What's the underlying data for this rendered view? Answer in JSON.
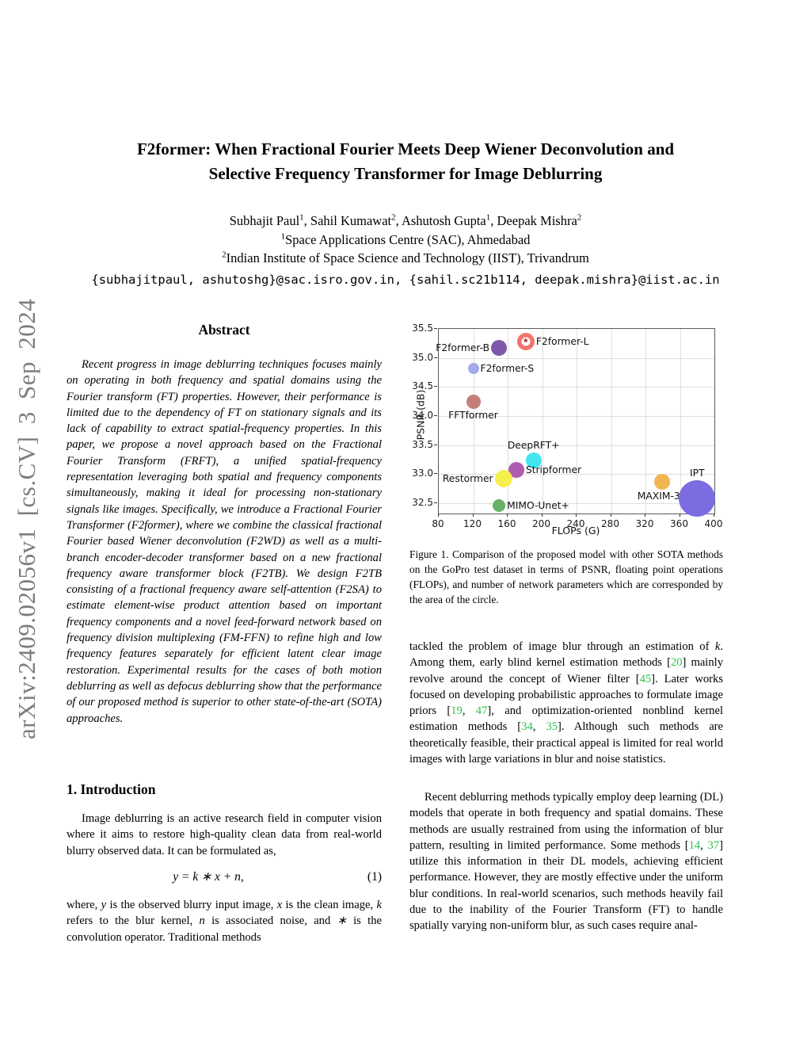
{
  "arxiv_banner": "arXiv:2409.02056v1 [cs.CV] 3 Sep 2024",
  "header": {
    "title_line1": "F2former: When Fractional Fourier Meets Deep Wiener Deconvolution and",
    "title_line2": "Selective Frequency Transformer for Image Deblurring",
    "authors_segments": [
      {
        "t": "Subhajit Paul"
      },
      {
        "sup": "1"
      },
      {
        "t": ", Sahil Kumawat"
      },
      {
        "sup": "2"
      },
      {
        "t": ", Ashutosh Gupta"
      },
      {
        "sup": "1"
      },
      {
        "t": ", Deepak Mishra"
      },
      {
        "sup": "2"
      }
    ],
    "affil1_segments": [
      {
        "sup": "1"
      },
      {
        "t": "Space Applications Centre (SAC), Ahmedabad"
      }
    ],
    "affil2_segments": [
      {
        "sup": "2"
      },
      {
        "t": "Indian Institute of Space Science and Technology (IIST), Trivandrum"
      }
    ],
    "emails": "{subhajitpaul, ashutoshg}@sac.isro.gov.in, {sahil.sc21b114, deepak.mishra}@iist.ac.in"
  },
  "left_column": {
    "abstract_title": "Abstract",
    "abstract_text": "Recent progress in image deblurring techniques focuses mainly on operating in both frequency and spatial domains using the Fourier transform (FT) properties. However, their performance is limited due to the dependency of FT on stationary signals and its lack of capability to extract spatial-frequency properties. In this paper, we propose a novel approach based on the Fractional Fourier Transform (FRFT), a unified spatial-frequency representation leveraging both spatial and frequency components simultaneously, making it ideal for processing non-stationary signals like images. Specifically, we introduce a Fractional Fourier Transformer (F2former), where we combine the classical fractional Fourier based Wiener deconvolution (F2WD) as well as a multi-branch encoder-decoder transformer based on a new fractional frequency aware transformer block (F2TB). We design F2TB consisting of a fractional frequency aware self-attention (F2SA) to estimate element-wise product attention based on important frequency components and a novel feed-forward network based on frequency division multiplexing (FM-FFN) to refine high and low frequency features separately for efficient latent clear image restoration. Experimental results for the cases of both motion deblurring as well as defocus deblurring show that the performance of our proposed method is superior to other state-of-the-art (SOTA) approaches.",
    "section1_title": "1. Introduction",
    "intro_p1": "Image deblurring is an active research field in computer vision where it aims to restore high-quality clean data from real-world blurry observed data. It can be formulated as,",
    "equation_segments": [
      {
        "i": "y"
      },
      {
        "t": " = "
      },
      {
        "i": "k"
      },
      {
        "t": " ∗ "
      },
      {
        "i": "x"
      },
      {
        "t": " + "
      },
      {
        "i": "n"
      },
      {
        "t": ","
      }
    ],
    "equation_number": "(1)",
    "intro_p2_segments": [
      {
        "t": "where, "
      },
      {
        "i": "y"
      },
      {
        "t": " is the observed blurry input image, "
      },
      {
        "i": "x"
      },
      {
        "t": " is the clean image, "
      },
      {
        "i": "k"
      },
      {
        "t": " refers to the blur kernel, "
      },
      {
        "i": "n"
      },
      {
        "t": " is associated noise, and "
      },
      {
        "i": "∗"
      },
      {
        "t": " is the convolution operator.  Traditional methods"
      }
    ]
  },
  "right_column": {
    "figure_caption": "Figure 1. Comparison of the proposed model with other SOTA methods on the GoPro test dataset in terms of PSNR, floating point operations (FLOPs), and number of network parameters which are corresponded by the area of the circle.",
    "para1_segments": [
      {
        "t": "tackled the problem of image blur through an estimation of "
      },
      {
        "i": "k"
      },
      {
        "t": ".  Among them, early blind kernel estimation methods ["
      },
      {
        "c": "20"
      },
      {
        "t": "] mainly revolve around the concept of Wiener filter ["
      },
      {
        "c": "45"
      },
      {
        "t": "].  Later works focused on developing probabilistic approaches to formulate image priors ["
      },
      {
        "c": "19"
      },
      {
        "t": ", "
      },
      {
        "c": "47"
      },
      {
        "t": "], and optimization-oriented nonblind kernel estimation methods ["
      },
      {
        "c": "34"
      },
      {
        "t": ", "
      },
      {
        "c": "35"
      },
      {
        "t": "]. Although such methods are theoretically feasible, their practical appeal is limited for real world images with large variations in blur and noise statistics."
      }
    ],
    "para2_segments": [
      {
        "t": "Recent deblurring methods typically employ deep learning (DL) models that operate in both frequency and spatial domains.  These methods are usually restrained from using the information of blur pattern, resulting in limited performance.  Some methods ["
      },
      {
        "c": "14"
      },
      {
        "t": ", "
      },
      {
        "c": "37"
      },
      {
        "t": "] utilize this information in their DL models, achieving efficient performance.  However, they are mostly effective under the uniform blur conditions. In real-world scenarios, such methods heavily fail due to the inability of the Fourier Transform (FT) to handle spatially varying non-uniform blur, as such cases require anal-"
      }
    ]
  },
  "chart_data": {
    "type": "scatter",
    "title": "",
    "xlabel": "FLOPs (G)",
    "ylabel": "PSNR (dB)",
    "xlim": [
      80,
      400
    ],
    "ylim": [
      32.32,
      35.5
    ],
    "xticks": [
      "80",
      "120",
      "160",
      "200",
      "240",
      "280",
      "320",
      "360",
      "400"
    ],
    "yticks": [
      "32.5",
      "33.0",
      "33.5",
      "34.0",
      "34.5",
      "35.0",
      "35.5"
    ],
    "grid": true,
    "legend_position": "none",
    "bubble_note": "bubble area encodes number of network parameters",
    "points": [
      {
        "name": "F2former-L",
        "x": 181,
        "y": 35.28,
        "r": 11,
        "color": "#f1746e",
        "label_pos": "right",
        "star": true
      },
      {
        "name": "F2former-B",
        "x": 150,
        "y": 35.17,
        "r": 10,
        "color": "#7f58a9",
        "label_pos": "left"
      },
      {
        "name": "F2former-S",
        "x": 120,
        "y": 34.82,
        "r": 7,
        "color": "#a2aae9",
        "label_pos": "right"
      },
      {
        "name": "FFTformer",
        "x": 120,
        "y": 34.25,
        "r": 9,
        "color": "#c37e7b",
        "label_pos": "below"
      },
      {
        "name": "DeepRFT+",
        "x": 190,
        "y": 33.23,
        "r": 10,
        "color": "#43e6f0",
        "label_pos": "above"
      },
      {
        "name": "Stripformer",
        "x": 170,
        "y": 33.07,
        "r": 10,
        "color": "#b05db0",
        "label_pos": "right"
      },
      {
        "name": "Restormer",
        "x": 155,
        "y": 32.92,
        "r": 11,
        "color": "#f6f04e",
        "label_pos": "left"
      },
      {
        "name": "MIMO-Unet+",
        "x": 150,
        "y": 32.45,
        "r": 8,
        "color": "#66b267",
        "label_pos": "right"
      },
      {
        "name": "MAXIM-3S",
        "x": 339,
        "y": 32.86,
        "r": 10,
        "color": "#f2b552",
        "label_pos": "below"
      },
      {
        "name": "IPT",
        "x": 380,
        "y": 32.58,
        "r": 23,
        "color": "#7b6de1",
        "label_pos": "above"
      }
    ]
  }
}
